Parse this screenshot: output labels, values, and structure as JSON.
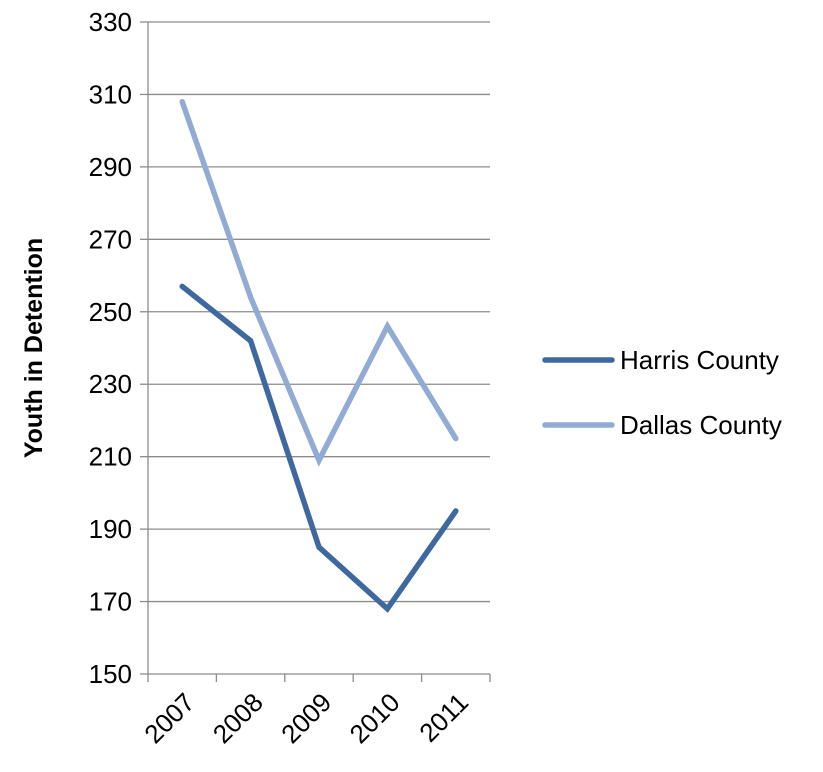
{
  "chart_data": {
    "type": "line",
    "x": [
      "2007",
      "2008",
      "2009",
      "2010",
      "2011"
    ],
    "series": [
      {
        "name": "Harris County",
        "color": "#3E68A0",
        "values": [
          257,
          242,
          185,
          168,
          195
        ]
      },
      {
        "name": "Dallas County",
        "color": "#91ABD5",
        "values": [
          308,
          254,
          209,
          246,
          215
        ]
      }
    ],
    "ylabel": "Youth in Detention",
    "xlabel": "",
    "ylim": [
      150,
      330
    ],
    "yticks": [
      150,
      170,
      190,
      210,
      230,
      250,
      270,
      290,
      310,
      330
    ],
    "grid": true,
    "legend": "right"
  }
}
